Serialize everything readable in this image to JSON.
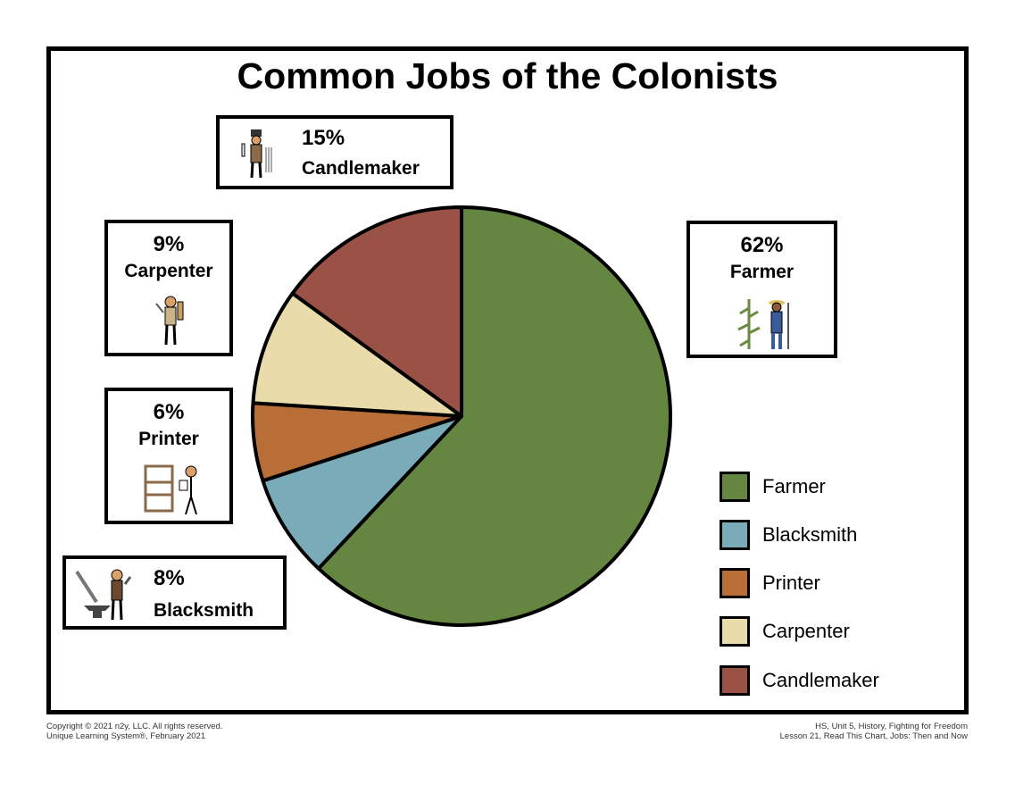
{
  "chart_data": {
    "type": "pie",
    "title": "Common Jobs of the Colonists",
    "start": "top",
    "direction": "clockwise",
    "categories": [
      "Farmer",
      "Blacksmith",
      "Printer",
      "Carpenter",
      "Candlemaker"
    ],
    "values": [
      62,
      8,
      6,
      9,
      15
    ],
    "colors": [
      "#648641",
      "#79abb8",
      "#b96d37",
      "#eadcaa",
      "#9a5146"
    ],
    "data_labels": [
      {
        "pct": "62%",
        "name": "Farmer"
      },
      {
        "pct": "8%",
        "name": "Blacksmith"
      },
      {
        "pct": "6%",
        "name": "Printer"
      },
      {
        "pct": "9%",
        "name": "Carpenter"
      },
      {
        "pct": "15%",
        "name": "Candlemaker"
      }
    ],
    "legend": {
      "position": "bottom-right",
      "entries": [
        "Farmer",
        "Blacksmith",
        "Printer",
        "Carpenter",
        "Candlemaker"
      ]
    }
  },
  "footer": {
    "left_1": "Copyright © 2021 n2y, LLC. All rights reserved.",
    "left_2": "Unique Learning System®, February 2021",
    "right_1": "HS, Unit 5, History, Fighting for Freedom",
    "right_2": "Lesson 21, Read This Chart, Jobs: Then and Now"
  }
}
